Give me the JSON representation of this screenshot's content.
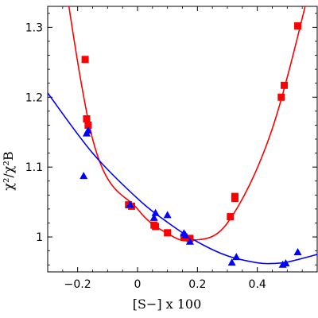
{
  "chart_data": {
    "type": "scatter",
    "xlabel": "[S−] x 100",
    "ylabel": "χ²/χ²B",
    "xlim": [
      -0.3,
      0.6
    ],
    "ylim": [
      0.95,
      1.33
    ],
    "x_ticks": [
      -0.2,
      0,
      0.2,
      0.4
    ],
    "x_tick_labels": [
      "−0.2",
      "0",
      "0.2",
      "0.4"
    ],
    "y_ticks": [
      1.0,
      1.1,
      1.2,
      1.3
    ],
    "y_tick_labels": [
      "1",
      "1.1",
      "1.2",
      "1.3"
    ],
    "grid": false,
    "series": [
      {
        "marker": "square",
        "color": "#ff0000",
        "points": [
          [
            -0.175,
            1.254
          ],
          [
            -0.17,
            1.169
          ],
          [
            -0.165,
            1.16
          ],
          [
            -0.03,
            1.046
          ],
          [
            -0.02,
            1.044
          ],
          [
            0.055,
            1.017
          ],
          [
            0.06,
            1.015
          ],
          [
            0.1,
            1.006
          ],
          [
            0.155,
            1.0
          ],
          [
            0.175,
            0.998
          ],
          [
            0.31,
            1.029
          ],
          [
            0.325,
            1.055
          ],
          [
            0.325,
            1.058
          ],
          [
            0.48,
            1.2
          ],
          [
            0.49,
            1.217
          ],
          [
            0.535,
            1.302
          ]
        ],
        "fit": [
          [
            -0.3,
            1.537
          ],
          [
            -0.15,
            1.14
          ],
          [
            0.0,
            1.04
          ],
          [
            0.1,
            1.005
          ],
          [
            0.18,
            0.995
          ],
          [
            0.3,
            1.02
          ],
          [
            0.45,
            1.155
          ],
          [
            0.6,
            1.4
          ]
        ]
      },
      {
        "marker": "triangle",
        "color": "#0000ff",
        "points": [
          [
            -0.18,
            1.087
          ],
          [
            -0.17,
            1.148
          ],
          [
            -0.165,
            1.152
          ],
          [
            -0.025,
            1.046
          ],
          [
            0.055,
            1.027
          ],
          [
            0.06,
            1.034
          ],
          [
            0.1,
            1.031
          ],
          [
            0.155,
            1.005
          ],
          [
            0.16,
            1.002
          ],
          [
            0.175,
            0.993
          ],
          [
            0.315,
            0.963
          ],
          [
            0.33,
            0.971
          ],
          [
            0.485,
            0.96
          ],
          [
            0.495,
            0.962
          ],
          [
            0.535,
            0.978
          ]
        ],
        "fit": [
          [
            -0.3,
            1.206
          ],
          [
            -0.15,
            1.12
          ],
          [
            0.0,
            1.055
          ],
          [
            0.1,
            1.021
          ],
          [
            0.2,
            0.993
          ],
          [
            0.3,
            0.973
          ],
          [
            0.4,
            0.963
          ],
          [
            0.45,
            0.962
          ],
          [
            0.5,
            0.964
          ],
          [
            0.6,
            0.975
          ]
        ]
      }
    ]
  }
}
